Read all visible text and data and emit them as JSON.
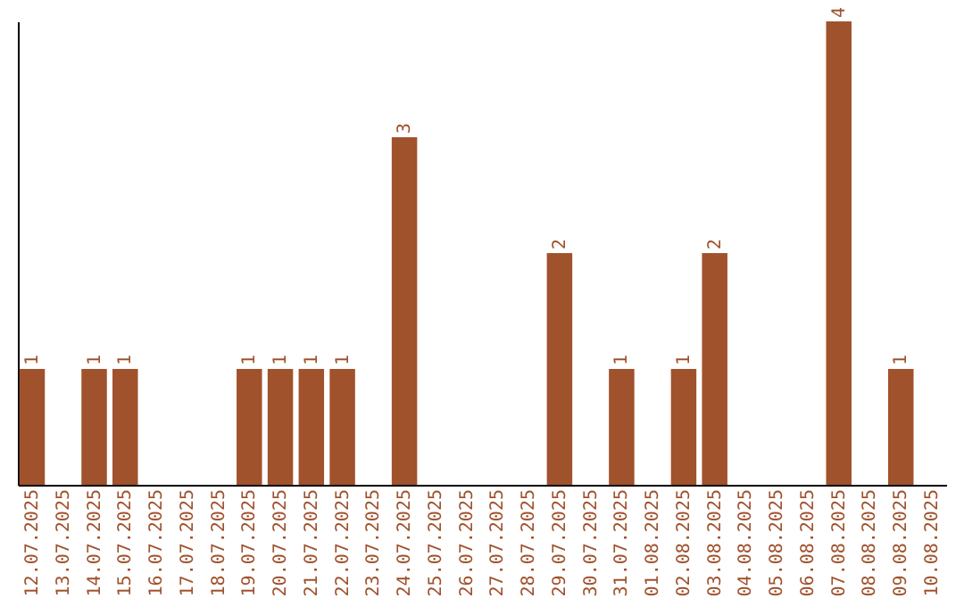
{
  "chart_data": {
    "type": "bar",
    "categories": [
      "12.07.2025",
      "13.07.2025",
      "14.07.2025",
      "15.07.2025",
      "16.07.2025",
      "17.07.2025",
      "18.07.2025",
      "19.07.2025",
      "20.07.2025",
      "21.07.2025",
      "22.07.2025",
      "23.07.2025",
      "24.07.2025",
      "25.07.2025",
      "26.07.2025",
      "27.07.2025",
      "28.07.2025",
      "29.07.2025",
      "30.07.2025",
      "31.07.2025",
      "01.08.2025",
      "02.08.2025",
      "03.08.2025",
      "04.08.2025",
      "05.08.2025",
      "06.08.2025",
      "07.08.2025",
      "08.08.2025",
      "09.08.2025",
      "10.08.2025"
    ],
    "values": [
      1,
      0,
      1,
      1,
      0,
      0,
      0,
      1,
      1,
      1,
      1,
      0,
      3,
      0,
      0,
      0,
      0,
      2,
      0,
      1,
      0,
      1,
      2,
      0,
      0,
      0,
      4,
      0,
      1,
      0
    ],
    "value_labels": [
      "1",
      null,
      "1",
      "1",
      null,
      null,
      null,
      "1",
      "1",
      "1",
      "1",
      null,
      "3",
      null,
      null,
      null,
      null,
      "2",
      null,
      "1",
      null,
      "1",
      "2",
      null,
      null,
      null,
      "4",
      null,
      "1",
      null
    ],
    "color": "#a0522d",
    "tick_labels": "x",
    "grid": false
  }
}
